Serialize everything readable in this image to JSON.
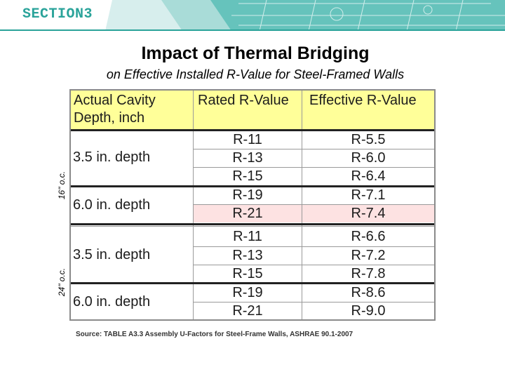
{
  "header": {
    "section_label": "SECTION3"
  },
  "title": "Impact of Thermal Bridging",
  "subtitle": "on Effective Installed R-Value for Steel-Framed Walls",
  "side_labels": {
    "spacing_16": "16\" o.c.",
    "spacing_24": "24\" o.c."
  },
  "table": {
    "headers": [
      "Actual Cavity Depth, inch",
      "Rated R-Value",
      "Effective R-Value"
    ],
    "header_col1_line1": "Actual Cavity",
    "header_col1_line2": "Depth, inch",
    "depth_labels": [
      "3.5 in. depth",
      "6.0 in. depth",
      "3.5 in. depth",
      "6.0 in. depth"
    ],
    "rows": [
      {
        "rated": "R-11",
        "effective": "R-5.5"
      },
      {
        "rated": "R-13",
        "effective": "R-6.0"
      },
      {
        "rated": "R-15",
        "effective": "R-6.4"
      },
      {
        "rated": "R-19",
        "effective": "R-7.1"
      },
      {
        "rated": "R-21",
        "effective": "R-7.4"
      },
      {
        "rated": "R-11",
        "effective": "R-6.6"
      },
      {
        "rated": "R-13",
        "effective": "R-7.2"
      },
      {
        "rated": "R-15",
        "effective": "R-7.8"
      },
      {
        "rated": "R-19",
        "effective": "R-8.6"
      },
      {
        "rated": "R-21",
        "effective": "R-9.0"
      }
    ]
  },
  "source": "Source:  TABLE A3.3 Assembly U-Factors for Steel-Frame Walls, ASHRAE 90.1-2007",
  "colors": {
    "accent": "#2aa39a",
    "header_fill": "#ffff99",
    "highlight_row": "#fde2e2",
    "banner": "#d9efee"
  }
}
